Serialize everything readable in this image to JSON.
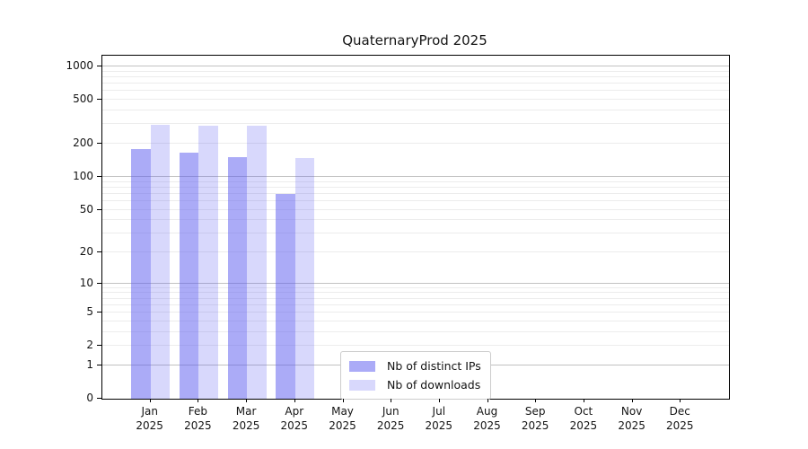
{
  "figure": {
    "background": "#ffffff"
  },
  "colors": {
    "bar_distinct_ips": "rgba(88,88,240,0.50)",
    "bar_downloads": "rgba(88,88,240,0.23)",
    "grid_major": "#c2c2c2",
    "grid_minor": "#ececec",
    "axis_spine": "#000000",
    "text": "#141414",
    "legend_border": "#cccccc"
  },
  "chart_data": {
    "type": "bar",
    "title": "QuaternaryProd 2025",
    "categories": [
      "Jan",
      "Feb",
      "Mar",
      "Apr",
      "May",
      "Jun",
      "Jul",
      "Aug",
      "Sep",
      "Oct",
      "Nov",
      "Dec"
    ],
    "x_tick_year_line": "2025",
    "series": [
      {
        "key": "distinct-ips",
        "name": "Nb of distinct IPs",
        "color": "rgba(88,88,240,0.50)",
        "values": [
          180,
          167,
          150,
          70,
          null,
          null,
          null,
          null,
          null,
          null,
          null,
          null
        ]
      },
      {
        "key": "downloads",
        "name": "Nb of downloads",
        "color": "rgba(88,88,240,0.23)",
        "values": [
          295,
          291,
          292,
          147,
          null,
          null,
          null,
          null,
          null,
          null,
          null,
          null
        ]
      }
    ],
    "y_ticks": [
      0,
      1,
      2,
      5,
      10,
      20,
      50,
      100,
      200,
      500,
      1000
    ],
    "scale": "log1p",
    "ylim": [
      0,
      1253
    ],
    "xlim": [
      -1,
      12
    ],
    "grid": true,
    "legend_position": "inside lower-center-left"
  }
}
